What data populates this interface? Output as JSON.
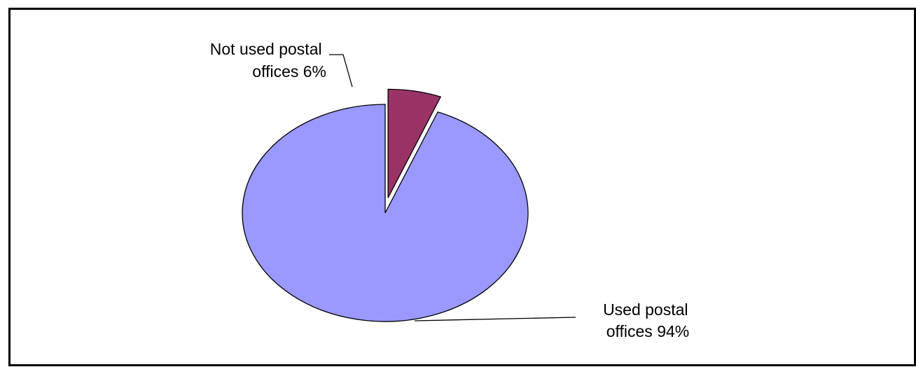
{
  "chart_data": {
    "type": "pie",
    "title": "",
    "slices": [
      {
        "label_lines": [
          "Used postal",
          "offices 94%"
        ],
        "value": 94,
        "color": "#9999ff",
        "exploded": false
      },
      {
        "label_lines": [
          "Not used postal",
          "offices 6%"
        ],
        "value": 6,
        "color": "#993366",
        "exploded": true
      }
    ],
    "start_angle": "top",
    "direction": "counterclockwise",
    "legend": "none",
    "border_color": "#000000"
  }
}
